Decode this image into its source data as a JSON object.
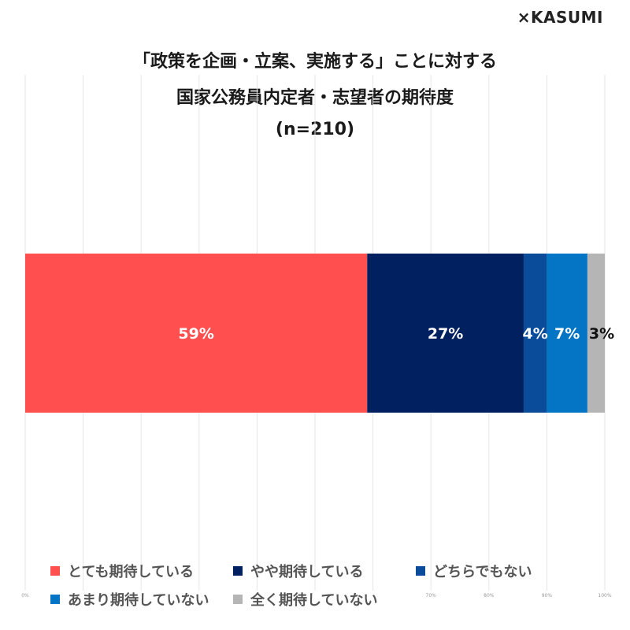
{
  "brand": "×KASUMI",
  "title_lines": [
    "「政策を企画・立案、実施する」ことに対する",
    "国家公務員内定者・志望者の期待度",
    "(n=210)"
  ],
  "chart_data": {
    "type": "bar",
    "orientation": "horizontal-stacked-100",
    "title": "「政策を企画・立案、実施する」ことに対する 国家公務員内定者・志望者の期待度 (n=210)",
    "x_ticks": [
      "0%",
      "",
      "",
      "",
      "",
      "",
      "",
      "70%",
      "80%",
      "90%",
      "100%"
    ],
    "xlim": [
      0,
      100
    ],
    "grid": true,
    "legend_position": "bottom",
    "series": [
      {
        "name": "とても期待している",
        "value": 59,
        "label": "59%",
        "color": "#FF4F4F",
        "label_color": "#ffffff"
      },
      {
        "name": "やや期待している",
        "value": 27,
        "label": "27%",
        "color": "#002060",
        "label_color": "#ffffff"
      },
      {
        "name": "どちらでもない",
        "value": 4,
        "label": "4%",
        "color": "#0A4C9A",
        "label_color": "#ffffff"
      },
      {
        "name": "あまり期待していない",
        "value": 7,
        "label": "7%",
        "color": "#0474C5",
        "label_color": "#ffffff"
      },
      {
        "name": "全く期待していない",
        "value": 3,
        "label": "3%",
        "color": "#B5B5B5",
        "label_color": "#111111"
      }
    ]
  }
}
